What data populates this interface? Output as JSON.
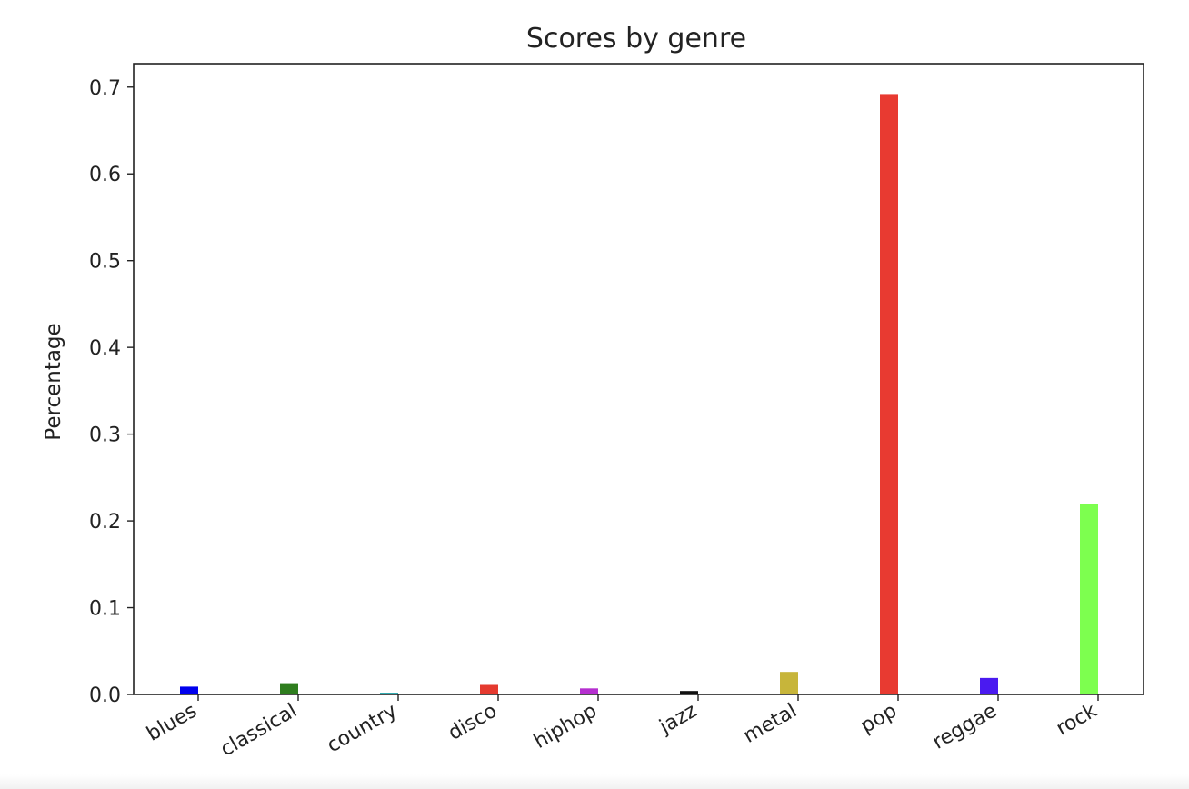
{
  "chart_data": {
    "type": "bar",
    "title": "Scores by genre",
    "xlabel": "",
    "ylabel": "Percentage",
    "categories": [
      "blues",
      "classical",
      "country",
      "disco",
      "hiphop",
      "jazz",
      "metal",
      "pop",
      "reggae",
      "rock"
    ],
    "values": [
      0.009,
      0.013,
      0.002,
      0.011,
      0.007,
      0.004,
      0.026,
      0.692,
      0.019,
      0.219
    ],
    "colors": [
      "#0000ee",
      "#2e7d1e",
      "#1fa3a8",
      "#e53a2f",
      "#b52fcf",
      "#111111",
      "#c7b53a",
      "#e83a31",
      "#4a1af0",
      "#7dff4f"
    ],
    "ylim": [
      0,
      0.727
    ],
    "yticks": [
      "0.0",
      "0.1",
      "0.2",
      "0.3",
      "0.4",
      "0.5",
      "0.6",
      "0.7"
    ],
    "grid": false,
    "legend": "none"
  }
}
